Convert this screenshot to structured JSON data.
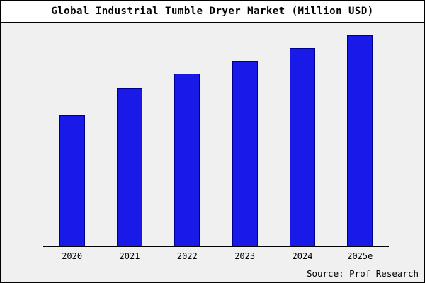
{
  "header": {
    "title": "Global Industrial Tumble Dryer Market (Million USD)"
  },
  "footer": {
    "source": "Source: Prof Research"
  },
  "chart_data": {
    "type": "bar",
    "title": "Global Industrial Tumble Dryer Market (Million USD)",
    "categories": [
      "2020",
      "2021",
      "2022",
      "2023",
      "2024",
      "2025e"
    ],
    "values": [
      62,
      75,
      82,
      88,
      94,
      100
    ],
    "xlabel": "",
    "ylabel": "",
    "ylim": [
      0,
      106
    ],
    "grid": false,
    "legend": false,
    "value_note": "No y-axis scale shown; values are estimated relative units with tallest bar (2025e) = 100",
    "bar_color": "#1a1ae8",
    "background_color": "#f0f0f0",
    "border_color": "#000000"
  }
}
